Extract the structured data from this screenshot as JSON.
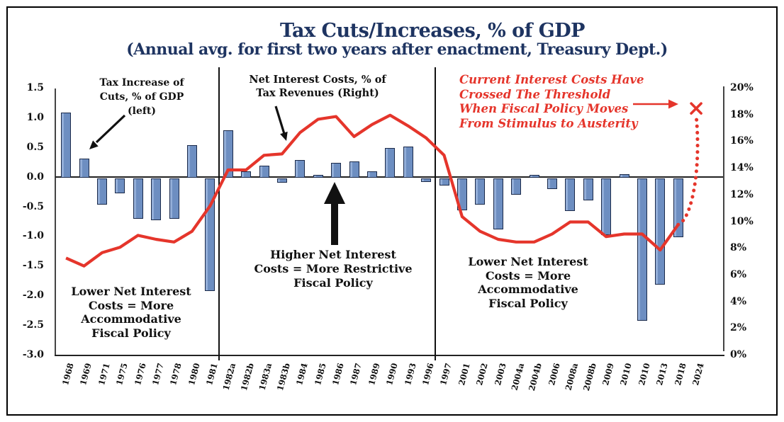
{
  "title": "Tax Cuts/Increases, % of GDP",
  "subtitle": "(Annual avg. for first two years after enactment, Treasury Dept.)",
  "annotations": {
    "bar_label": "Tax Increase of\nCuts, % of GDP\n(left)",
    "line_label": "Net Interest Costs, % of\nTax Revenues (Right)",
    "higher_costs": "Higher Net Interest\nCosts = More Restrictive\nFiscal Policy",
    "lower_costs_left": "Lower Net Interest\nCosts = More\nAccommodative\nFiscal Policy",
    "lower_costs_right": "Lower Net Interest\nCosts = More\nAccommodative\nFiscal Policy",
    "threshold_note": "Current Interest Costs Have\nCrossed The Threshold\nWhen Fiscal Policy Moves\nFrom Stimulus to Austerity"
  },
  "colors": {
    "title_navy": "#1e3461",
    "bar_fill": "#6d8ec1",
    "bar_border": "#1b2a4a",
    "line_red": "#e5352b",
    "axis_black": "#111111"
  },
  "chart_data": {
    "type": "bar",
    "subtype": "combo bar + line, dual axis",
    "categories": [
      "1968",
      "1969",
      "1971",
      "1975",
      "1976",
      "1977",
      "1978",
      "1980",
      "1981",
      "1982a",
      "1982b",
      "1983a",
      "1983b",
      "1984",
      "1985",
      "1986",
      "1987",
      "1989",
      "1990",
      "1993",
      "1996",
      "1997",
      "2001",
      "2002",
      "2003",
      "2004a",
      "2004b",
      "2006",
      "2008a",
      "2008b",
      "2009",
      "2010",
      "2010",
      "2013",
      "2018",
      "2024"
    ],
    "series": [
      {
        "name": "Tax Increase of Cuts, % of GDP (left)",
        "type": "bar",
        "axis": "left",
        "values": [
          1.1,
          0.32,
          -0.45,
          -0.26,
          -0.69,
          -0.71,
          -0.69,
          0.55,
          -1.9,
          0.8,
          0.1,
          0.2,
          -0.08,
          0.3,
          0.04,
          0.25,
          0.27,
          0.1,
          0.5,
          0.52,
          -0.06,
          -0.12,
          -0.54,
          -0.44,
          -0.86,
          -0.28,
          0.04,
          -0.18,
          -0.55,
          -0.37,
          -0.96,
          0.06,
          -2.4,
          -1.8,
          -1.0,
          null
        ]
      },
      {
        "name": "Net Interest Costs, % of Tax Revenues (Right)",
        "type": "line",
        "axis": "right",
        "values": [
          7.3,
          6.7,
          7.7,
          8.1,
          9.0,
          8.7,
          8.5,
          9.3,
          11.2,
          13.9,
          13.9,
          15.0,
          15.1,
          16.7,
          17.7,
          17.9,
          16.4,
          17.3,
          18.0,
          17.2,
          16.3,
          15.0,
          10.4,
          9.3,
          8.7,
          8.5,
          8.5,
          9.1,
          10.0,
          10.0,
          8.9,
          9.1,
          9.1,
          7.9,
          9.8,
          null
        ]
      }
    ],
    "projection": {
      "from_category": "2018",
      "from_value": 9.8,
      "to_category": "2024",
      "to_value": 18.4,
      "style": "dotted",
      "marker": "x"
    },
    "dividers_after": [
      "1981",
      "1996"
    ],
    "axes": {
      "left": {
        "max": 1.5,
        "min": -3.0,
        "tick_step": 0.5,
        "labels": [
          "1.5",
          "1.0",
          "0.5",
          "0.0",
          "-0.5",
          "-1.0",
          "-1.5",
          "-2.0",
          "-2.5",
          "-3.0"
        ]
      },
      "right": {
        "max": 20,
        "min": 0,
        "tick_step": 2,
        "labels": [
          "20%",
          "18%",
          "16%",
          "14%",
          "12%",
          "10%",
          "8%",
          "6%",
          "4%",
          "2%",
          "0%"
        ]
      }
    },
    "grid": false,
    "legend": "none (labels via in-chart annotations with arrows)"
  }
}
